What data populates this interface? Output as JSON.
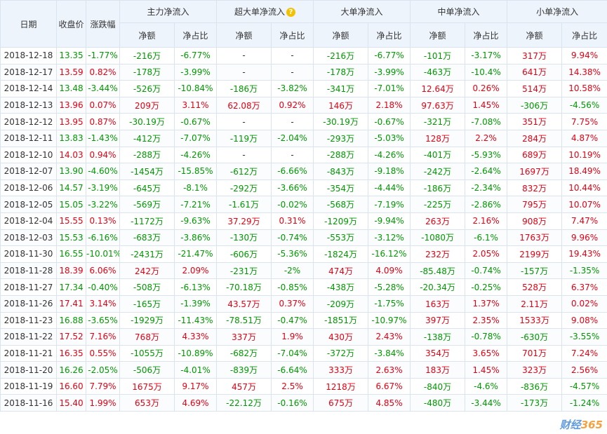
{
  "header": {
    "date": "日期",
    "close": "收盘价",
    "change": "涨跌幅",
    "groups": [
      "主力净流入",
      "超大单净流入",
      "大单净流入",
      "中单净流入",
      "小单净流入"
    ],
    "net": "净额",
    "ratio": "净占比",
    "help_icon": "?"
  },
  "rows": [
    {
      "date": "2018-12-18",
      "close": "13.35",
      "chg": "-1.77%",
      "cells": [
        "-216万",
        "-6.77%",
        "-",
        "-",
        "-216万",
        "-6.77%",
        "-101万",
        "-3.17%",
        "317万",
        "9.94%"
      ]
    },
    {
      "date": "2018-12-17",
      "close": "13.59",
      "chg": "0.82%",
      "cells": [
        "-178万",
        "-3.99%",
        "-",
        "-",
        "-178万",
        "-3.99%",
        "-463万",
        "-10.4%",
        "641万",
        "14.38%"
      ]
    },
    {
      "date": "2018-12-14",
      "close": "13.48",
      "chg": "-3.44%",
      "cells": [
        "-526万",
        "-10.84%",
        "-186万",
        "-3.82%",
        "-341万",
        "-7.01%",
        "12.64万",
        "0.26%",
        "514万",
        "10.58%"
      ]
    },
    {
      "date": "2018-12-13",
      "close": "13.96",
      "chg": "0.07%",
      "cells": [
        "209万",
        "3.11%",
        "62.08万",
        "0.92%",
        "146万",
        "2.18%",
        "97.63万",
        "1.45%",
        "-306万",
        "-4.56%"
      ]
    },
    {
      "date": "2018-12-12",
      "close": "13.95",
      "chg": "0.87%",
      "cells": [
        "-30.19万",
        "-0.67%",
        "-",
        "-",
        "-30.19万",
        "-0.67%",
        "-321万",
        "-7.08%",
        "351万",
        "7.75%"
      ]
    },
    {
      "date": "2018-12-11",
      "close": "13.83",
      "chg": "-1.43%",
      "cells": [
        "-412万",
        "-7.07%",
        "-119万",
        "-2.04%",
        "-293万",
        "-5.03%",
        "128万",
        "2.2%",
        "284万",
        "4.87%"
      ]
    },
    {
      "date": "2018-12-10",
      "close": "14.03",
      "chg": "0.94%",
      "cells": [
        "-288万",
        "-4.26%",
        "-",
        "-",
        "-288万",
        "-4.26%",
        "-401万",
        "-5.93%",
        "689万",
        "10.19%"
      ]
    },
    {
      "date": "2018-12-07",
      "close": "13.90",
      "chg": "-4.60%",
      "cells": [
        "-1454万",
        "-15.85%",
        "-612万",
        "-6.66%",
        "-843万",
        "-9.18%",
        "-242万",
        "-2.64%",
        "1697万",
        "18.49%"
      ]
    },
    {
      "date": "2018-12-06",
      "close": "14.57",
      "chg": "-3.19%",
      "cells": [
        "-645万",
        "-8.1%",
        "-292万",
        "-3.66%",
        "-354万",
        "-4.44%",
        "-186万",
        "-2.34%",
        "832万",
        "10.44%"
      ]
    },
    {
      "date": "2018-12-05",
      "close": "15.05",
      "chg": "-3.22%",
      "cells": [
        "-569万",
        "-7.21%",
        "-1.61万",
        "-0.02%",
        "-568万",
        "-7.19%",
        "-225万",
        "-2.86%",
        "795万",
        "10.07%"
      ]
    },
    {
      "date": "2018-12-04",
      "close": "15.55",
      "chg": "0.13%",
      "cells": [
        "-1172万",
        "-9.63%",
        "37.29万",
        "0.31%",
        "-1209万",
        "-9.94%",
        "263万",
        "2.16%",
        "908万",
        "7.47%"
      ]
    },
    {
      "date": "2018-12-03",
      "close": "15.53",
      "chg": "-6.16%",
      "cells": [
        "-683万",
        "-3.86%",
        "-130万",
        "-0.74%",
        "-553万",
        "-3.12%",
        "-1080万",
        "-6.1%",
        "1763万",
        "9.96%"
      ]
    },
    {
      "date": "2018-11-30",
      "close": "16.55",
      "chg": "-10.01%",
      "cells": [
        "-2431万",
        "-21.47%",
        "-606万",
        "-5.36%",
        "-1824万",
        "-16.12%",
        "232万",
        "2.05%",
        "2199万",
        "19.43%"
      ]
    },
    {
      "date": "2018-11-28",
      "close": "18.39",
      "chg": "6.06%",
      "cells": [
        "242万",
        "2.09%",
        "-231万",
        "-2%",
        "474万",
        "4.09%",
        "-85.48万",
        "-0.74%",
        "-157万",
        "-1.35%"
      ]
    },
    {
      "date": "2018-11-27",
      "close": "17.34",
      "chg": "-0.40%",
      "cells": [
        "-508万",
        "-6.13%",
        "-70.18万",
        "-0.85%",
        "-438万",
        "-5.28%",
        "-20.34万",
        "-0.25%",
        "528万",
        "6.37%"
      ]
    },
    {
      "date": "2018-11-26",
      "close": "17.41",
      "chg": "3.14%",
      "cells": [
        "-165万",
        "-1.39%",
        "43.57万",
        "0.37%",
        "-209万",
        "-1.75%",
        "163万",
        "1.37%",
        "2.11万",
        "0.02%"
      ]
    },
    {
      "date": "2018-11-23",
      "close": "16.88",
      "chg": "-3.65%",
      "cells": [
        "-1929万",
        "-11.43%",
        "-78.51万",
        "-0.47%",
        "-1851万",
        "-10.97%",
        "397万",
        "2.35%",
        "1533万",
        "9.08%"
      ]
    },
    {
      "date": "2018-11-22",
      "close": "17.52",
      "chg": "7.16%",
      "cells": [
        "768万",
        "4.33%",
        "337万",
        "1.9%",
        "430万",
        "2.43%",
        "-138万",
        "-0.78%",
        "-630万",
        "-3.55%"
      ]
    },
    {
      "date": "2018-11-21",
      "close": "16.35",
      "chg": "0.55%",
      "cells": [
        "-1055万",
        "-10.89%",
        "-682万",
        "-7.04%",
        "-372万",
        "-3.84%",
        "354万",
        "3.65%",
        "701万",
        "7.24%"
      ]
    },
    {
      "date": "2018-11-20",
      "close": "16.26",
      "chg": "-2.05%",
      "cells": [
        "-506万",
        "-4.01%",
        "-839万",
        "-6.64%",
        "333万",
        "2.63%",
        "183万",
        "1.45%",
        "323万",
        "2.56%"
      ]
    },
    {
      "date": "2018-11-19",
      "close": "16.60",
      "chg": "7.79%",
      "cells": [
        "1675万",
        "9.17%",
        "457万",
        "2.5%",
        "1218万",
        "6.67%",
        "-840万",
        "-4.6%",
        "-836万",
        "-4.57%"
      ]
    },
    {
      "date": "2018-11-16",
      "close": "15.40",
      "chg": "1.99%",
      "cells": [
        "653万",
        "4.69%",
        "-22.12万",
        "-0.16%",
        "675万",
        "4.85%",
        "-480万",
        "-3.44%",
        "-173万",
        "-1.24%"
      ]
    }
  ],
  "colors": {
    "up": "#e60012",
    "down": "#009900",
    "header_bg": "#eef4fc",
    "border": "#dbe3ee"
  },
  "watermark": {
    "text": "财经",
    "num": "365"
  }
}
